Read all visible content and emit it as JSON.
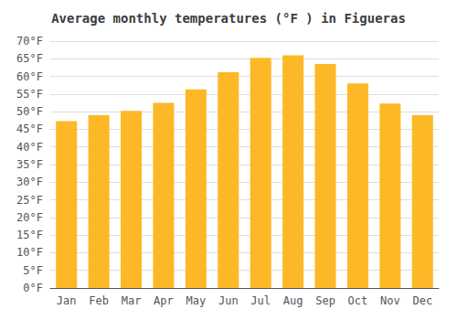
{
  "chart_data": {
    "type": "bar",
    "title": "Average monthly temperatures (°F ) in Figueras",
    "categories": [
      "Jan",
      "Feb",
      "Mar",
      "Apr",
      "May",
      "Jun",
      "Jul",
      "Aug",
      "Sep",
      "Oct",
      "Nov",
      "Dec"
    ],
    "values": [
      47.3,
      49.0,
      50.2,
      52.5,
      56.3,
      61.2,
      65.3,
      66.0,
      63.5,
      58.0,
      52.3,
      49.0
    ],
    "color": "#FDB827",
    "ylim": [
      0,
      70
    ],
    "yticks": [
      {
        "value": 0,
        "label": "0°F"
      },
      {
        "value": 5,
        "label": "5°F"
      },
      {
        "value": 10,
        "label": "10°F"
      },
      {
        "value": 15,
        "label": "15°F"
      },
      {
        "value": 20,
        "label": "20°F"
      },
      {
        "value": 25,
        "label": "25°F"
      },
      {
        "value": 30,
        "label": "30°F"
      },
      {
        "value": 35,
        "label": "35°F"
      },
      {
        "value": 40,
        "label": "40°F"
      },
      {
        "value": 45,
        "label": "45°F"
      },
      {
        "value": 50,
        "label": "50°F"
      },
      {
        "value": 55,
        "label": "55°F"
      },
      {
        "value": 60,
        "label": "60°F"
      },
      {
        "value": 65,
        "label": "65°F"
      },
      {
        "value": 70,
        "label": "70°F"
      }
    ],
    "grid": true
  }
}
